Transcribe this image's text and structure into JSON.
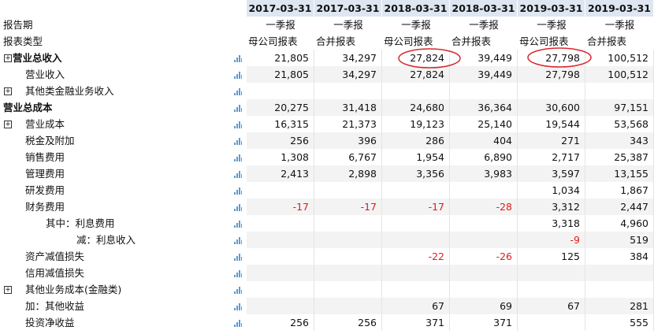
{
  "header": {
    "dates": [
      "2017-03-31",
      "2017-03-31",
      "2018-03-31",
      "2018-03-31",
      "2019-03-31",
      "2019-03-31"
    ]
  },
  "report_period": {
    "label": "报告期",
    "values": [
      "一季报",
      "一季报",
      "一季报",
      "一季报",
      "一季报",
      "一季报"
    ]
  },
  "report_type": {
    "label": "报表类型",
    "values": [
      "母公司报表",
      "合并报表",
      "母公司报表",
      "合并报表",
      "母公司报表",
      "合并报表"
    ]
  },
  "rows": [
    {
      "label": "营业总收入",
      "values": [
        "21,805",
        "34,297",
        "27,824",
        "39,449",
        "27,798",
        "100,512"
      ]
    },
    {
      "label": "营业收入",
      "values": [
        "21,805",
        "34,297",
        "27,824",
        "39,449",
        "27,798",
        "100,512"
      ]
    },
    {
      "label": "其他类金融业务收入",
      "values": [
        null,
        null,
        null,
        null,
        null,
        null
      ]
    },
    {
      "label": "营业总成本",
      "values": [
        "20,275",
        "31,418",
        "24,680",
        "36,364",
        "30,600",
        "97,151"
      ]
    },
    {
      "label": "营业成本",
      "values": [
        "16,315",
        "21,373",
        "19,123",
        "25,140",
        "19,544",
        "53,568"
      ]
    },
    {
      "label": "税金及附加",
      "values": [
        "256",
        "396",
        "286",
        "404",
        "271",
        "343"
      ]
    },
    {
      "label": "销售费用",
      "values": [
        "1,308",
        "6,767",
        "1,954",
        "6,890",
        "2,717",
        "25,387"
      ]
    },
    {
      "label": "管理费用",
      "values": [
        "2,413",
        "2,898",
        "3,356",
        "3,983",
        "3,597",
        "13,155"
      ]
    },
    {
      "label": "研发费用",
      "values": [
        null,
        null,
        null,
        null,
        "1,034",
        "1,867"
      ]
    },
    {
      "label": "财务费用",
      "values": [
        "-17",
        "-17",
        "-17",
        "-28",
        "3,312",
        "2,447"
      ]
    },
    {
      "label": "其中：利息费用",
      "values": [
        null,
        null,
        null,
        null,
        "3,318",
        "4,960"
      ]
    },
    {
      "label": "减：利息收入",
      "values": [
        null,
        null,
        null,
        null,
        "-9",
        "519"
      ]
    },
    {
      "label": "资产减值损失",
      "values": [
        null,
        null,
        "-22",
        "-26",
        "125",
        "384"
      ]
    },
    {
      "label": "信用减值损失",
      "values": [
        null,
        null,
        null,
        null,
        null,
        null
      ]
    },
    {
      "label": "其他业务成本(金融类)",
      "values": [
        null,
        null,
        null,
        null,
        null,
        null
      ]
    },
    {
      "label": "加：其他收益",
      "values": [
        null,
        null,
        "67",
        "69",
        "67",
        "281"
      ]
    },
    {
      "label": "投资净收益",
      "values": [
        "256",
        "256",
        "371",
        "371",
        null,
        "555"
      ]
    }
  ]
}
